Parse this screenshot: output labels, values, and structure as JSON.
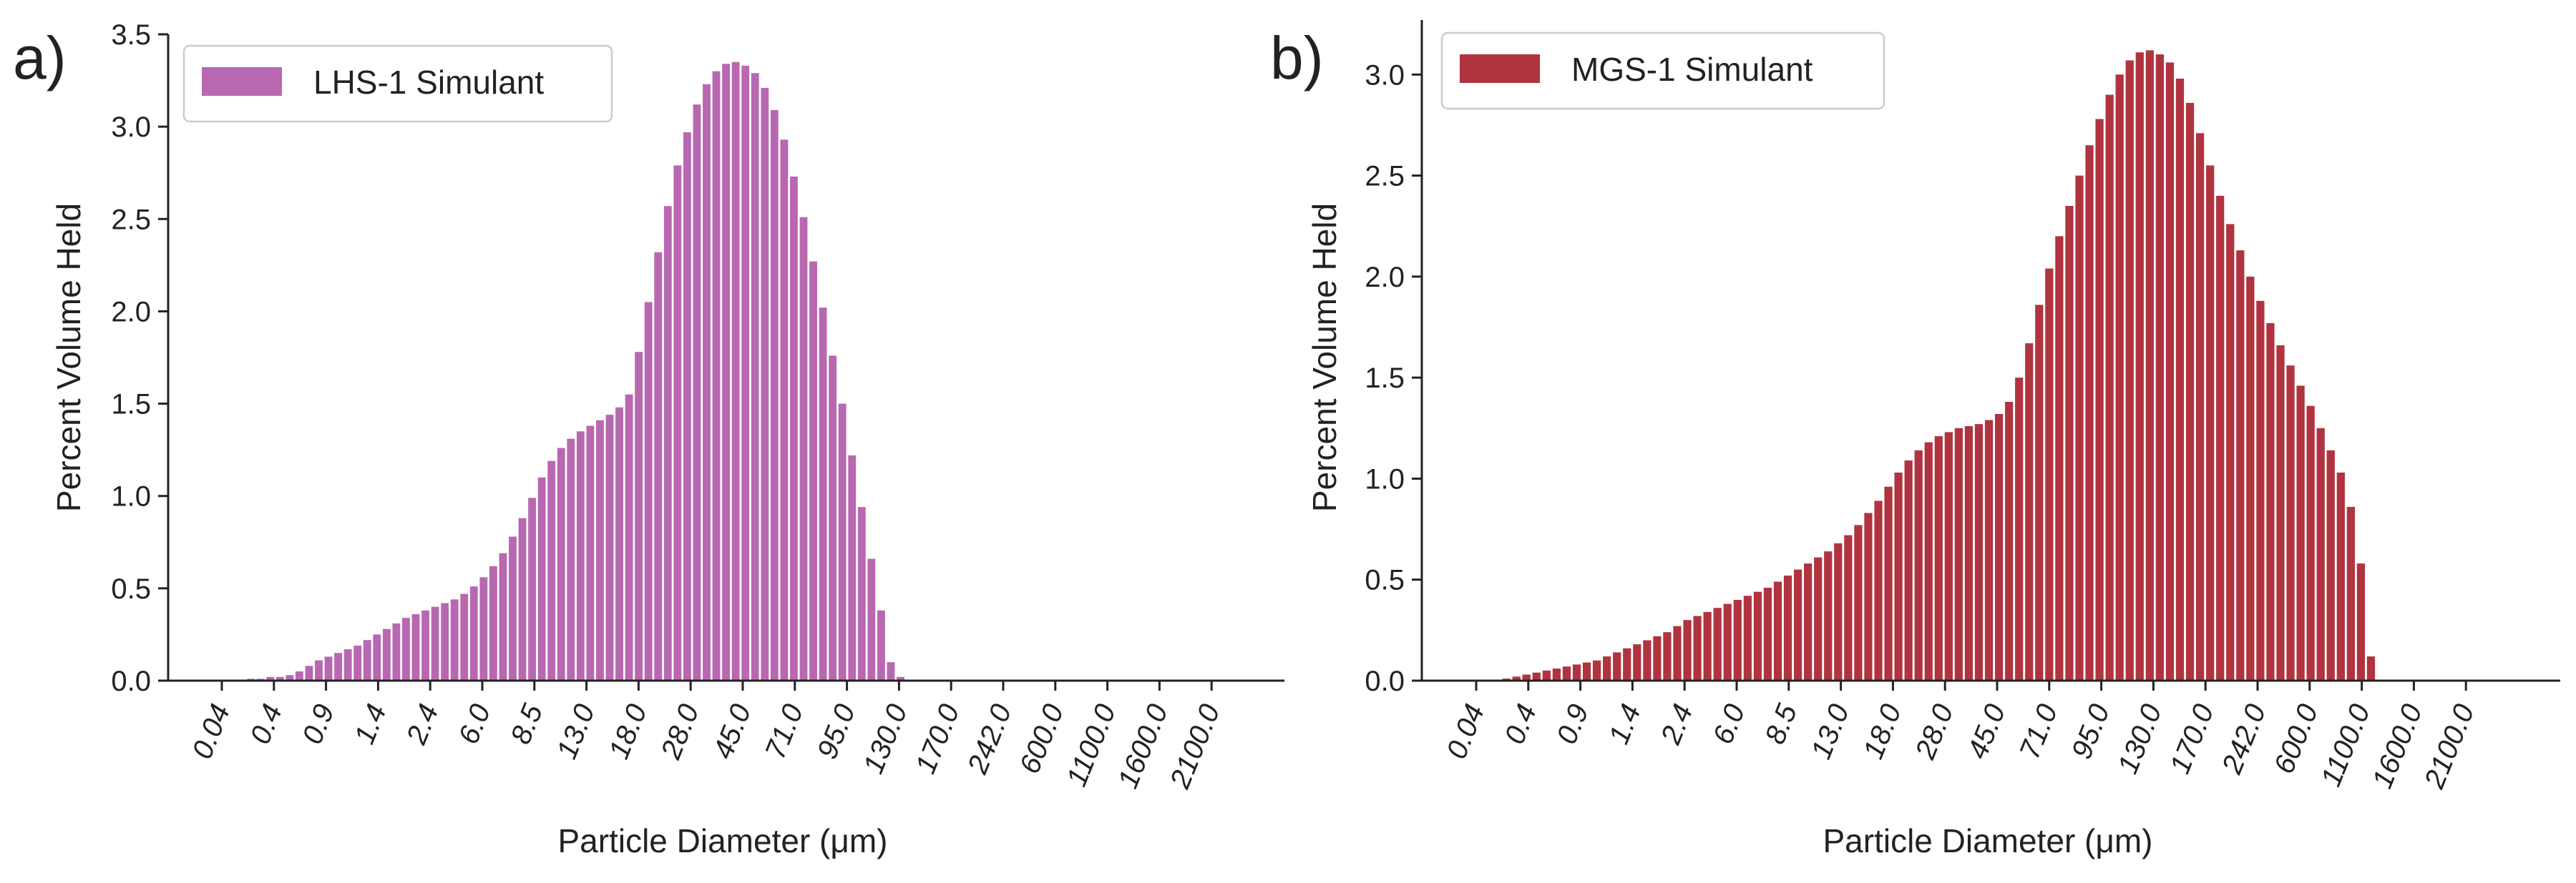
{
  "chart_data": [
    {
      "type": "bar",
      "panel_label": "a)",
      "color": "#b868b0",
      "xlabel": "Particle Diameter (μm)",
      "ylabel": "Percent Volume Held",
      "ylim": [
        0,
        3.5
      ],
      "yticks": [
        "0.0",
        "0.5",
        "1.0",
        "1.5",
        "2.0",
        "2.5",
        "3.0",
        "3.5"
      ],
      "xtick_labels": [
        "0.04",
        "0.4",
        "0.9",
        "1.4",
        "2.4",
        "6.0",
        "8.5",
        "13.0",
        "18.0",
        "28.0",
        "45.0",
        "71.0",
        "95.0",
        "130.0",
        "170.0",
        "242.0",
        "600.0",
        "1100.0",
        "1600.0",
        "2100.0"
      ],
      "grid": false,
      "legend_position": "top-left",
      "series": [
        {
          "name": "LHS-1 Simulant",
          "values": [
            0,
            0,
            0,
            0.01,
            0.01,
            0.02,
            0.02,
            0.03,
            0.05,
            0.08,
            0.11,
            0.13,
            0.15,
            0.17,
            0.19,
            0.22,
            0.25,
            0.28,
            0.31,
            0.34,
            0.36,
            0.38,
            0.4,
            0.42,
            0.44,
            0.47,
            0.51,
            0.56,
            0.62,
            0.69,
            0.78,
            0.88,
            0.99,
            1.1,
            1.19,
            1.26,
            1.31,
            1.35,
            1.38,
            1.41,
            1.44,
            1.48,
            1.55,
            1.78,
            2.05,
            2.32,
            2.57,
            2.79,
            2.97,
            3.12,
            3.23,
            3.3,
            3.34,
            3.35,
            3.33,
            3.29,
            3.21,
            3.09,
            2.93,
            2.73,
            2.51,
            2.27,
            2.02,
            1.76,
            1.5,
            1.22,
            0.94,
            0.66,
            0.38,
            0.1,
            0.02,
            0,
            0,
            0,
            0,
            0,
            0,
            0,
            0,
            0,
            0,
            0,
            0,
            0,
            0,
            0,
            0,
            0,
            0,
            0,
            0,
            0,
            0,
            0,
            0,
            0,
            0,
            0,
            0,
            0,
            0,
            0
          ]
        }
      ]
    },
    {
      "type": "bar",
      "panel_label": "b)",
      "color": "#b0343f",
      "xlabel": "Particle Diameter (μm)",
      "ylabel": "Percent Volume Held",
      "ylim": [
        0,
        3.27
      ],
      "yticks": [
        "0.0",
        "0.5",
        "1.0",
        "1.5",
        "2.0",
        "2.5",
        "3.0"
      ],
      "xtick_labels": [
        "0.04",
        "0.4",
        "0.9",
        "1.4",
        "2.4",
        "6.0",
        "8.5",
        "13.0",
        "18.0",
        "28.0",
        "45.0",
        "71.0",
        "95.0",
        "130.0",
        "170.0",
        "242.0",
        "600.0",
        "1100.0",
        "1600.0",
        "2100.0"
      ],
      "grid": false,
      "legend_position": "top-left",
      "series": [
        {
          "name": "MGS-1 Simulant",
          "values": [
            0,
            0,
            0,
            0.01,
            0.02,
            0.03,
            0.04,
            0.05,
            0.06,
            0.07,
            0.08,
            0.09,
            0.1,
            0.12,
            0.14,
            0.16,
            0.18,
            0.2,
            0.22,
            0.24,
            0.27,
            0.3,
            0.32,
            0.34,
            0.36,
            0.38,
            0.4,
            0.42,
            0.44,
            0.46,
            0.49,
            0.52,
            0.55,
            0.58,
            0.61,
            0.64,
            0.68,
            0.72,
            0.77,
            0.83,
            0.89,
            0.96,
            1.03,
            1.09,
            1.14,
            1.18,
            1.21,
            1.23,
            1.25,
            1.26,
            1.27,
            1.29,
            1.32,
            1.38,
            1.5,
            1.67,
            1.86,
            2.04,
            2.2,
            2.35,
            2.5,
            2.65,
            2.78,
            2.9,
            3.0,
            3.07,
            3.11,
            3.12,
            3.1,
            3.06,
            2.98,
            2.86,
            2.71,
            2.55,
            2.4,
            2.26,
            2.13,
            2.0,
            1.88,
            1.77,
            1.66,
            1.56,
            1.46,
            1.36,
            1.25,
            1.14,
            1.03,
            0.86,
            0.58,
            0.12,
            0,
            0,
            0,
            0,
            0,
            0,
            0,
            0,
            0,
            0,
            0,
            0
          ]
        }
      ]
    }
  ]
}
